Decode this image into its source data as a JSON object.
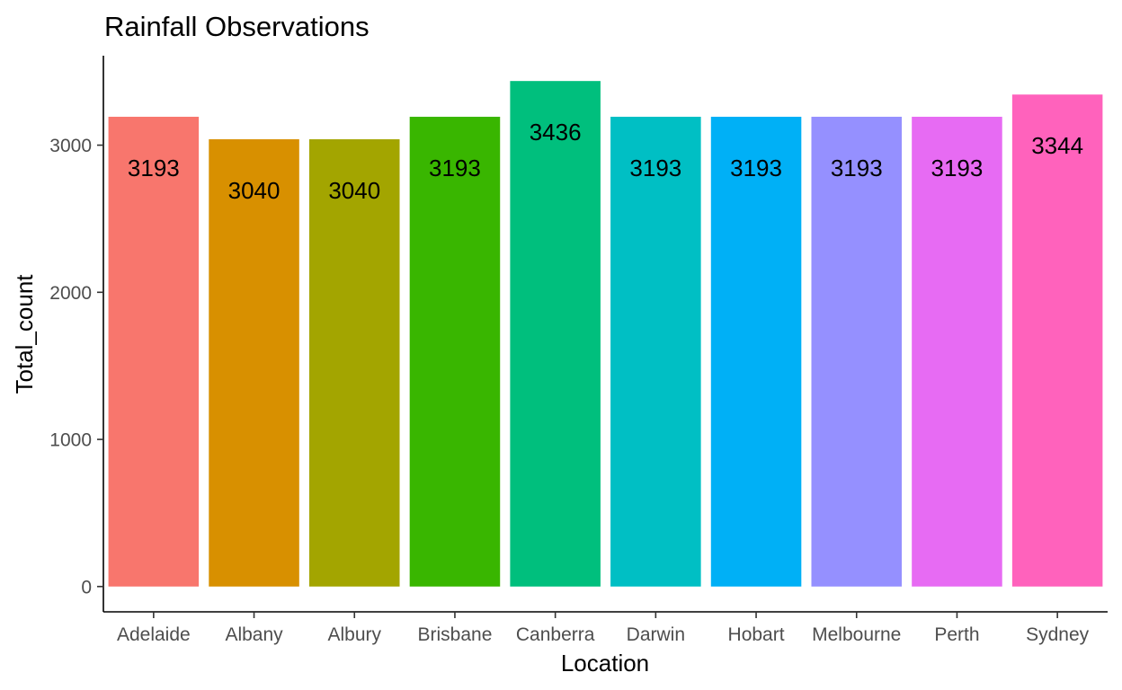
{
  "chart_data": {
    "type": "bar",
    "title": "Rainfall Observations",
    "xlabel": "Location",
    "ylabel": "Total_count",
    "categories": [
      "Adelaide",
      "Albany",
      "Albury",
      "Brisbane",
      "Canberra",
      "Darwin",
      "Hobart",
      "Melbourne",
      "Perth",
      "Sydney"
    ],
    "values": [
      3193,
      3040,
      3040,
      3193,
      3436,
      3193,
      3193,
      3193,
      3193,
      3344
    ],
    "data_labels": [
      "3193",
      "3040",
      "3040",
      "3193",
      "3436",
      "3193",
      "3193",
      "3193",
      "3193",
      "3344"
    ],
    "colors": [
      "#F8766D",
      "#D89000",
      "#A3A500",
      "#39B600",
      "#00BF7D",
      "#00BFC4",
      "#00B0F6",
      "#9590FF",
      "#E76BF3",
      "#FF62BC"
    ],
    "yticks": [
      0,
      1000,
      2000,
      3000
    ],
    "ytick_labels": [
      "0",
      "1000",
      "2000",
      "3000"
    ],
    "ylim": [
      -172,
      3608
    ],
    "grid": false,
    "legend": "none"
  }
}
